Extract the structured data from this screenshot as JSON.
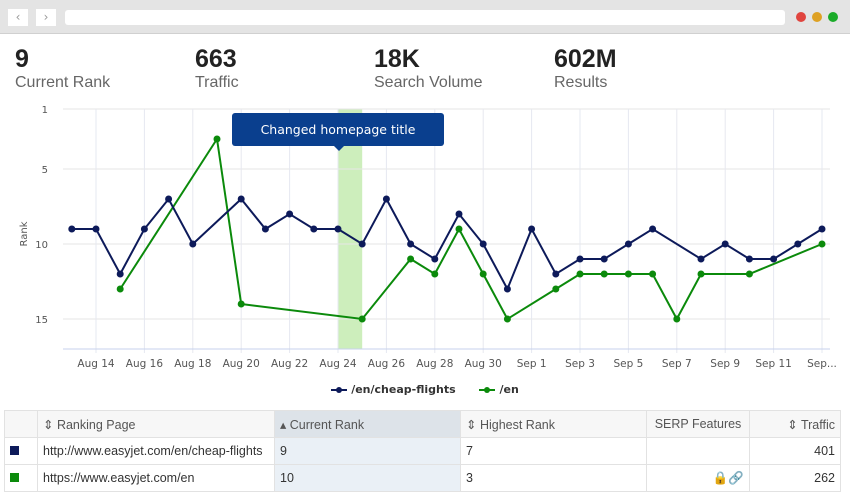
{
  "stats": [
    {
      "value": "9",
      "label": "Current Rank"
    },
    {
      "value": "663",
      "label": "Traffic"
    },
    {
      "value": "18K",
      "label": "Search Volume"
    },
    {
      "value": "602M",
      "label": "Results"
    }
  ],
  "annotation": "Changed homepage title",
  "colors": {
    "navy": "#0d1a5a",
    "green": "#0b8a0b",
    "highlight": "#cdeebc",
    "tooltip": "#0a3f8e"
  },
  "chart_data": {
    "type": "line",
    "ylabel": "Rank",
    "ylim": [
      1,
      17
    ],
    "y_inverted": true,
    "yticks": [
      "1",
      "5",
      "10",
      "15"
    ],
    "dates": [
      "Aug 13",
      "Aug 14",
      "Aug 15",
      "Aug 16",
      "Aug 17",
      "Aug 18",
      "Aug 19",
      "Aug 20",
      "Aug 21",
      "Aug 22",
      "Aug 23",
      "Aug 24",
      "Aug 25",
      "Aug 26",
      "Aug 27",
      "Aug 28",
      "Aug 29",
      "Aug 30",
      "Aug 31",
      "Sep 1",
      "Sep 2",
      "Sep 3",
      "Sep 4",
      "Sep 5",
      "Sep 6",
      "Sep 7",
      "Sep 8",
      "Sep 9",
      "Sep 10",
      "Sep 11",
      "Sep 12",
      "Sep 13"
    ],
    "xticks": [
      "Aug 14",
      "Aug 16",
      "Aug 18",
      "Aug 20",
      "Aug 22",
      "Aug 24",
      "Aug 26",
      "Aug 28",
      "Aug 30",
      "Sep 1",
      "Sep 3",
      "Sep 5",
      "Sep 7",
      "Sep 9",
      "Sep 11",
      "Sep..."
    ],
    "highlight_range": [
      "Aug 24",
      "Aug 25"
    ],
    "series": [
      {
        "name": "/en/cheap-flights",
        "color": "#0d1a5a",
        "values": [
          9,
          9,
          12,
          9,
          7,
          10,
          null,
          7,
          9,
          8,
          9,
          9,
          10,
          7,
          10,
          11,
          8,
          10,
          13,
          9,
          12,
          11,
          11,
          10,
          9,
          null,
          11,
          10,
          11,
          11,
          10,
          9
        ]
      },
      {
        "name": "/en",
        "color": "#0b8a0b",
        "values": [
          null,
          null,
          13,
          null,
          null,
          null,
          3,
          14,
          null,
          null,
          null,
          null,
          15,
          null,
          11,
          12,
          9,
          12,
          15,
          null,
          13,
          12,
          12,
          12,
          12,
          15,
          12,
          null,
          12,
          null,
          null,
          10
        ]
      }
    ]
  },
  "table": {
    "headers": [
      "Ranking Page",
      "Current Rank",
      "Highest Rank",
      "SERP Features",
      "Traffic"
    ],
    "rows": [
      {
        "color": "#0d1a5a",
        "page": "http://www.easyjet.com/en/cheap-flights",
        "current": "9",
        "highest": "7",
        "traffic": "401"
      },
      {
        "color": "#0b8a0b",
        "page": "https://www.easyjet.com/en",
        "current": "10",
        "highest": "3",
        "traffic": "262"
      }
    ]
  }
}
